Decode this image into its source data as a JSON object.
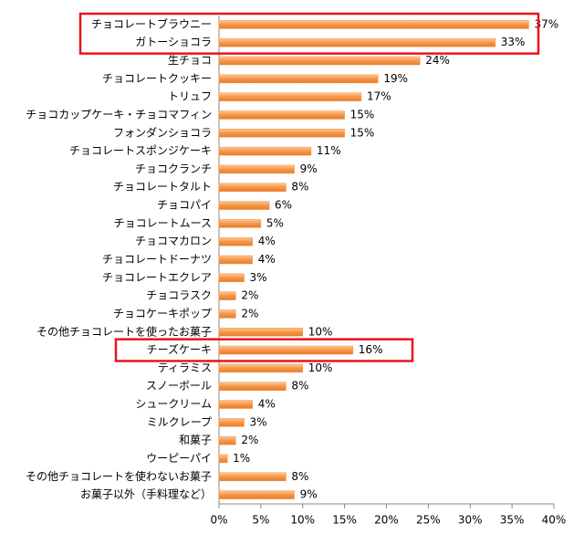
{
  "chart_data": {
    "type": "bar",
    "orientation": "horizontal",
    "categories": [
      "チョコレートブラウニー",
      "ガトーショコラ",
      "生チョコ",
      "チョコレートクッキー",
      "トリュフ",
      "チョコカップケーキ・チョコマフィン",
      "フォンダンショコラ",
      "チョコレートスポンジケーキ",
      "チョコクランチ",
      "チョコレートタルト",
      "チョコパイ",
      "チョコレートムース",
      "チョコマカロン",
      "チョコレートドーナツ",
      "チョコレートエクレア",
      "チョコラスク",
      "チョコケーキポップ",
      "その他チョコレートを使ったお菓子",
      "チーズケーキ",
      "ティラミス",
      "スノーボール",
      "シュークリーム",
      "ミルクレープ",
      "和菓子",
      "ウーピーパイ",
      "その他チョコレートを使わないお菓子",
      "お菓子以外（手料理など）"
    ],
    "values": [
      37,
      33,
      24,
      19,
      17,
      15,
      15,
      11,
      9,
      8,
      6,
      5,
      4,
      4,
      3,
      2,
      2,
      10,
      16,
      10,
      8,
      4,
      3,
      2,
      1,
      8,
      9
    ],
    "value_labels": [
      "37%",
      "33%",
      "24%",
      "19%",
      "17%",
      "15%",
      "15%",
      "11%",
      "9%",
      "8%",
      "6%",
      "5%",
      "4%",
      "4%",
      "3%",
      "2%",
      "2%",
      "10%",
      "16%",
      "10%",
      "8%",
      "4%",
      "3%",
      "2%",
      "1%",
      "8%",
      "9%"
    ],
    "color": "#f79646",
    "xlim": [
      0,
      40
    ],
    "xticks": [
      {
        "value": 0,
        "label": "0%"
      },
      {
        "value": 5,
        "label": "5%"
      },
      {
        "value": 10,
        "label": "10%"
      },
      {
        "value": 15,
        "label": "15%"
      },
      {
        "value": 20,
        "label": "20%"
      },
      {
        "value": 25,
        "label": "25%"
      },
      {
        "value": 30,
        "label": "30%"
      },
      {
        "value": 35,
        "label": "35%"
      },
      {
        "value": 40,
        "label": "40%"
      }
    ],
    "grid": false
  }
}
